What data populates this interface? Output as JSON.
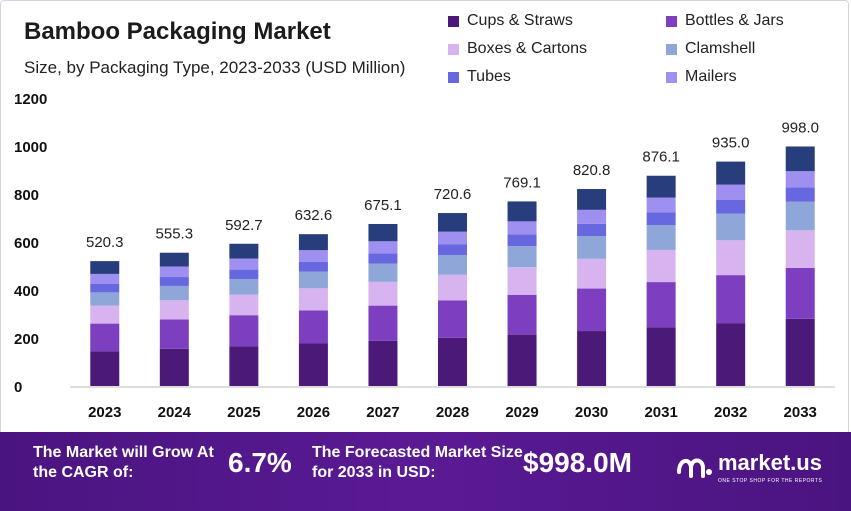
{
  "title": "Bamboo Packaging Market",
  "subtitle": "Size, by Packaging Type, 2023-2033 (USD Million)",
  "chart_data": {
    "type": "bar",
    "stacked": true,
    "categories": [
      "2023",
      "2024",
      "2025",
      "2026",
      "2027",
      "2028",
      "2029",
      "2030",
      "2031",
      "2032",
      "2033"
    ],
    "totals": [
      520.3,
      555.3,
      592.7,
      632.6,
      675.1,
      720.6,
      769.1,
      820.8,
      876.1,
      935.0,
      998.0
    ],
    "total_labels": [
      "520.3",
      "555.3",
      "592.7",
      "632.6",
      "675.1",
      "720.6",
      "769.1",
      "820.8",
      "876.1",
      "935.0",
      "998.0"
    ],
    "series": [
      {
        "name": "Cups & Straws",
        "color": "#4b1a78",
        "values": [
          145,
          155,
          165,
          177,
          188,
          201,
          214,
          229,
          245,
          262,
          280
        ]
      },
      {
        "name": "Bottles & Jars",
        "color": "#7d3fbf",
        "values": [
          115,
          122,
          130,
          138,
          147,
          156,
          166,
          177,
          188,
          200,
          212
        ]
      },
      {
        "name": "Boxes & Cartons",
        "color": "#d7b4ef",
        "values": [
          75,
          80,
          86,
          92,
          99,
          107,
          115,
          124,
          134,
          145,
          157
        ]
      },
      {
        "name": "Clamshell",
        "color": "#8fa6d9",
        "values": [
          55,
          60,
          65,
          70,
          76,
          82,
          88,
          95,
          103,
          111,
          119
        ]
      },
      {
        "name": "Tubes",
        "color": "#6767e0",
        "values": [
          35,
          37,
          39,
          41,
          43,
          45,
          48,
          51,
          54,
          57,
          60
        ]
      },
      {
        "name": "Mailers",
        "color": "#9f8ff0",
        "values": [
          42,
          44,
          46,
          48,
          50,
          52,
          55,
          58,
          61,
          64,
          67
        ]
      },
      {
        "name": "",
        "color": "#283e7c",
        "values": [
          53.3,
          57.3,
          61.7,
          66.6,
          72.1,
          77.6,
          83.1,
          86.8,
          91.1,
          96.0,
          103.0
        ]
      }
    ],
    "ylim": [
      0,
      1200
    ],
    "yticks": [
      "0",
      "200",
      "400",
      "600",
      "800",
      "1000",
      "1200"
    ],
    "grid": false,
    "legend_position": "top-right"
  },
  "footer": {
    "cagr_text": "The Market will Grow At the CAGR of:",
    "cagr_value": "6.7%",
    "size_text": "The Forecasted Market Size for 2033 in USD:",
    "size_value": "$998.0M",
    "brand_name": "market.us",
    "brand_tagline": "ONE STOP SHOP FOR THE REPORTS"
  }
}
